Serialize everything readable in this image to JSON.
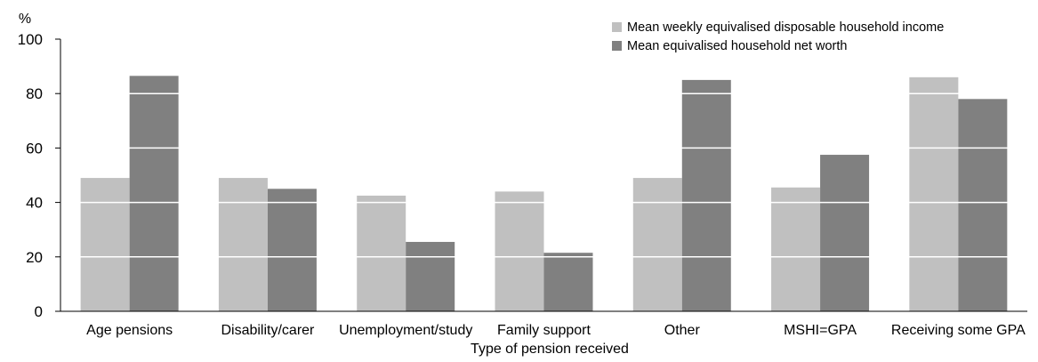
{
  "chart_data": {
    "type": "bar",
    "title": "",
    "xlabel": "Type of pension received",
    "ylabel": "%",
    "ylim": [
      0,
      100
    ],
    "yticks": [
      0,
      20,
      40,
      60,
      80,
      100
    ],
    "grid": "white horizontal lines across bars",
    "legend_position": "top-right",
    "categories": [
      "Age pensions",
      "Disability/carer",
      "Unemployment/study",
      "Family support",
      "Other",
      "MSHI=GPA",
      "Receiving some GPA"
    ],
    "series": [
      {
        "name": "Mean weekly equivalised disposable household income",
        "color": "#c0c0c0",
        "values": [
          49,
          49,
          42.5,
          44,
          49,
          45.5,
          86
        ]
      },
      {
        "name": "Mean equivalised household net worth",
        "color": "#808080",
        "values": [
          86.5,
          45,
          25.5,
          21.5,
          85,
          57.5,
          78
        ]
      }
    ]
  }
}
